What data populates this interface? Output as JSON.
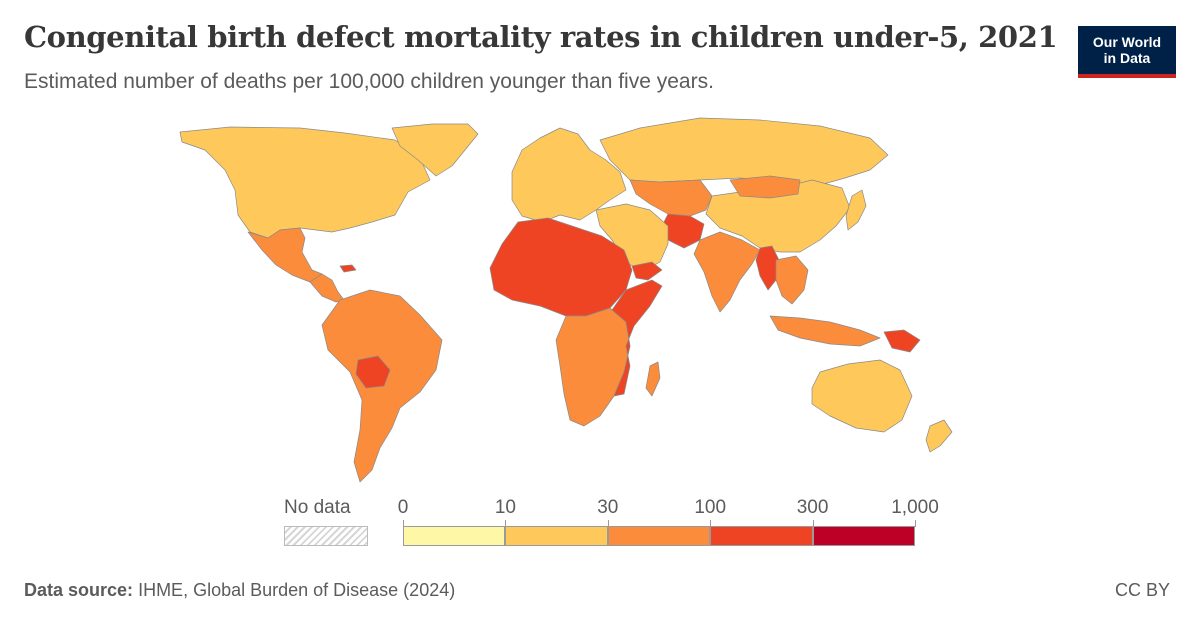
{
  "header": {
    "title": "Congenital birth defect mortality rates in children under-5, 2021",
    "subtitle": "Estimated number of deaths per 100,000 children younger than five years."
  },
  "logo": {
    "line1": "Our World",
    "line2": "in Data"
  },
  "legend": {
    "no_data_label": "No data",
    "ticks": [
      "0",
      "10",
      "30",
      "100",
      "300",
      "1,000"
    ],
    "bins": [
      {
        "from": "0",
        "to": "10",
        "color": "#fef8a6"
      },
      {
        "from": "10",
        "to": "30",
        "color": "#fec85a"
      },
      {
        "from": "30",
        "to": "100",
        "color": "#fb8c3c"
      },
      {
        "from": "100",
        "to": "300",
        "color": "#ee4424"
      },
      {
        "from": "300",
        "to": "1,000",
        "color": "#bd0026"
      }
    ]
  },
  "regions": [
    {
      "name": "North America",
      "color": "#fec85a"
    },
    {
      "name": "Greenland",
      "color": "#fec85a"
    },
    {
      "name": "Mexico",
      "color": "#fb8c3c"
    },
    {
      "name": "Central America",
      "color": "#fb8c3c"
    },
    {
      "name": "Haiti",
      "color": "#ee4424"
    },
    {
      "name": "South America",
      "color": "#fb8c3c"
    },
    {
      "name": "Bolivia",
      "color": "#ee4424"
    },
    {
      "name": "Europe",
      "color": "#fec85a"
    },
    {
      "name": "Russia",
      "color": "#fec85a"
    },
    {
      "name": "Central Asia",
      "color": "#fb8c3c"
    },
    {
      "name": "Afghanistan",
      "color": "#ee4424"
    },
    {
      "name": "Middle East",
      "color": "#fec85a"
    },
    {
      "name": "Yemen",
      "color": "#ee4424"
    },
    {
      "name": "North & West Africa",
      "color": "#ee4424"
    },
    {
      "name": "Central & Southern Africa",
      "color": "#fb8c3c"
    },
    {
      "name": "East Africa",
      "color": "#ee4424"
    },
    {
      "name": "South Asia",
      "color": "#fb8c3c"
    },
    {
      "name": "China",
      "color": "#fec85a"
    },
    {
      "name": "Mongolia",
      "color": "#fb8c3c"
    },
    {
      "name": "Japan",
      "color": "#fec85a"
    },
    {
      "name": "Myanmar",
      "color": "#ee4424"
    },
    {
      "name": "Southeast Asia",
      "color": "#fb8c3c"
    },
    {
      "name": "Indonesia",
      "color": "#fb8c3c"
    },
    {
      "name": "Papua New Guinea",
      "color": "#ee4424"
    },
    {
      "name": "Australia",
      "color": "#fec85a"
    },
    {
      "name": "New Zealand",
      "color": "#fec85a"
    },
    {
      "name": "Madagascar",
      "color": "#fb8c3c"
    }
  ],
  "footer": {
    "source_label": "Data source:",
    "source_text": "IHME, Global Burden of Disease (2024)",
    "license": "CC BY"
  }
}
